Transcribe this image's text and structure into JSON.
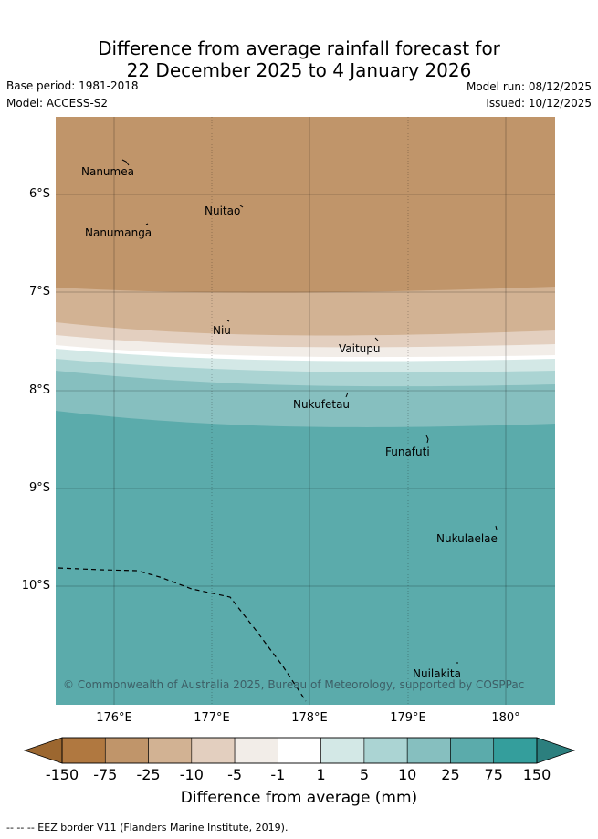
{
  "title": {
    "line1": "Difference from average rainfall forecast for",
    "line2": "22 December 2025 to 4 January 2026"
  },
  "meta": {
    "base_period": "Base period: 1981-2018",
    "model": "Model: ACCESS-S2",
    "model_run": "Model run: 08/12/2025",
    "issued": "Issued: 10/12/2025"
  },
  "map": {
    "lat_ticks": [
      "6°S",
      "7°S",
      "8°S",
      "9°S",
      "10°S"
    ],
    "lon_ticks": [
      "176°E",
      "177°E",
      "178°E",
      "179°E",
      "180°"
    ],
    "islands": [
      "Nanumea",
      "Nuitao",
      "Nanumanga",
      "Niu",
      "Vaitupu",
      "Nukufetau",
      "Funafuti",
      "Nukulaelae",
      "Nuilakita"
    ],
    "copyright": "© Commonwealth of Australia 2025, Bureau of Meteorology, supported by COSPPac"
  },
  "colorbar": {
    "ticks": [
      "-150",
      "-75",
      "-25",
      "-10",
      "-5",
      "-1",
      "1",
      "5",
      "10",
      "25",
      "75",
      "150"
    ],
    "colors": [
      "#b07840",
      "#c0956a",
      "#d2b293",
      "#e3cfbf",
      "#f2ede8",
      "#ffffff",
      "#d3e8e6",
      "#abd4d3",
      "#86bfbf",
      "#5babab",
      "#349e9c"
    ],
    "end_colors": [
      "#9c6730",
      "#2c7f7e"
    ],
    "title": "Difference from average (mm)"
  },
  "footnote": "--  --  -- EEZ border V11 (Flanders Marine Institute, 2019)."
}
